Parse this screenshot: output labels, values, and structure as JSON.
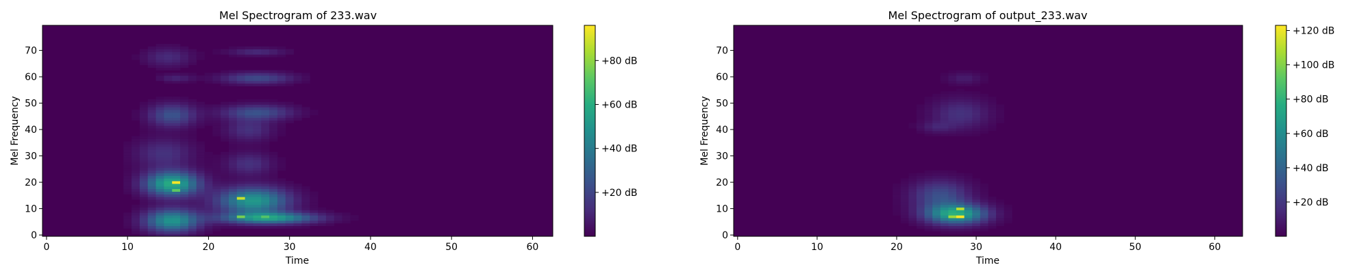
{
  "chart_data": [
    {
      "type": "heatmap",
      "title": "Mel Spectrogram of 233.wav",
      "xlabel": "Time",
      "ylabel": "Mel Frequency",
      "xlim": [
        -0.5,
        62.5
      ],
      "ylim": [
        -0.5,
        79.5
      ],
      "xticks": [
        0,
        10,
        20,
        30,
        40,
        50,
        60
      ],
      "yticks": [
        0,
        10,
        20,
        30,
        40,
        50,
        60,
        70
      ],
      "colorbar": {
        "min": 0,
        "max": 96,
        "ticks": [
          20,
          40,
          60,
          80
        ],
        "tick_labels": [
          "+20 dB",
          "+40 dB",
          "+60 dB",
          "+80 dB"
        ]
      },
      "grid": {
        "n_frames": 63,
        "n_mels": 80
      },
      "blobs": [
        {
          "t": 15.5,
          "m": 19.5,
          "st": 2.3,
          "sm": 3.2,
          "a": 60
        },
        {
          "t": 15.5,
          "m": 5.5,
          "st": 2.3,
          "sm": 3.0,
          "a": 50
        },
        {
          "t": 15.5,
          "m": 45.5,
          "st": 2.0,
          "sm": 3.0,
          "a": 25
        },
        {
          "t": 15.0,
          "m": 67.5,
          "st": 2.0,
          "sm": 2.5,
          "a": 12
        },
        {
          "t": 16.0,
          "m": 59.5,
          "st": 1.5,
          "sm": 1.0,
          "a": 10
        },
        {
          "t": 14.5,
          "m": 31.0,
          "st": 2.5,
          "sm": 4.0,
          "a": 14
        },
        {
          "t": 25.5,
          "m": 13.0,
          "st": 3.0,
          "sm": 3.5,
          "a": 52
        },
        {
          "t": 27.5,
          "m": 6.5,
          "st": 4.0,
          "sm": 1.5,
          "a": 52
        },
        {
          "t": 26.0,
          "m": 59.5,
          "st": 3.0,
          "sm": 1.5,
          "a": 22
        },
        {
          "t": 26.0,
          "m": 46.5,
          "st": 3.0,
          "sm": 2.0,
          "a": 24
        },
        {
          "t": 25.0,
          "m": 40.0,
          "st": 2.0,
          "sm": 3.0,
          "a": 14
        },
        {
          "t": 26.0,
          "m": 69.5,
          "st": 2.5,
          "sm": 1.0,
          "a": 12
        },
        {
          "t": 25.0,
          "m": 27.0,
          "st": 2.0,
          "sm": 3.0,
          "a": 14
        }
      ],
      "peaks": [
        {
          "t": 16,
          "m": 20,
          "v": 96
        },
        {
          "t": 16,
          "m": 17,
          "v": 72
        },
        {
          "t": 24,
          "m": 14,
          "v": 88
        },
        {
          "t": 24,
          "m": 7,
          "v": 76
        },
        {
          "t": 27,
          "m": 7,
          "v": 70
        }
      ]
    },
    {
      "type": "heatmap",
      "title": "Mel Spectrogram of output_233.wav",
      "xlabel": "Time",
      "ylabel": "Mel Frequency",
      "xlim": [
        -0.5,
        63.5
      ],
      "ylim": [
        -0.5,
        79.5
      ],
      "xticks": [
        0,
        10,
        20,
        30,
        40,
        50,
        60
      ],
      "yticks": [
        0,
        10,
        20,
        30,
        40,
        50,
        60,
        70
      ],
      "colorbar": {
        "min": 0,
        "max": 123,
        "ticks": [
          20,
          40,
          60,
          80,
          100,
          120
        ],
        "tick_labels": [
          "+20 dB",
          "+40 dB",
          "+60 dB",
          "+80 dB",
          "+100 dB",
          "+120 dB"
        ]
      },
      "grid": {
        "n_frames": 64,
        "n_mels": 80
      },
      "blobs": [
        {
          "t": 27.5,
          "m": 8.0,
          "st": 2.6,
          "sm": 2.6,
          "a": 75
        },
        {
          "t": 25.5,
          "m": 15.0,
          "st": 2.5,
          "sm": 4.0,
          "a": 30
        },
        {
          "t": 28.0,
          "m": 46.0,
          "st": 2.5,
          "sm": 4.0,
          "a": 18
        },
        {
          "t": 28.5,
          "m": 59.5,
          "st": 1.5,
          "sm": 1.5,
          "a": 10
        },
        {
          "t": 25.0,
          "m": 41.0,
          "st": 1.5,
          "sm": 1.5,
          "a": 10
        }
      ],
      "peaks": [
        {
          "t": 28,
          "m": 10,
          "v": 110
        },
        {
          "t": 28,
          "m": 7,
          "v": 123
        },
        {
          "t": 27,
          "m": 7,
          "v": 105
        }
      ]
    }
  ]
}
